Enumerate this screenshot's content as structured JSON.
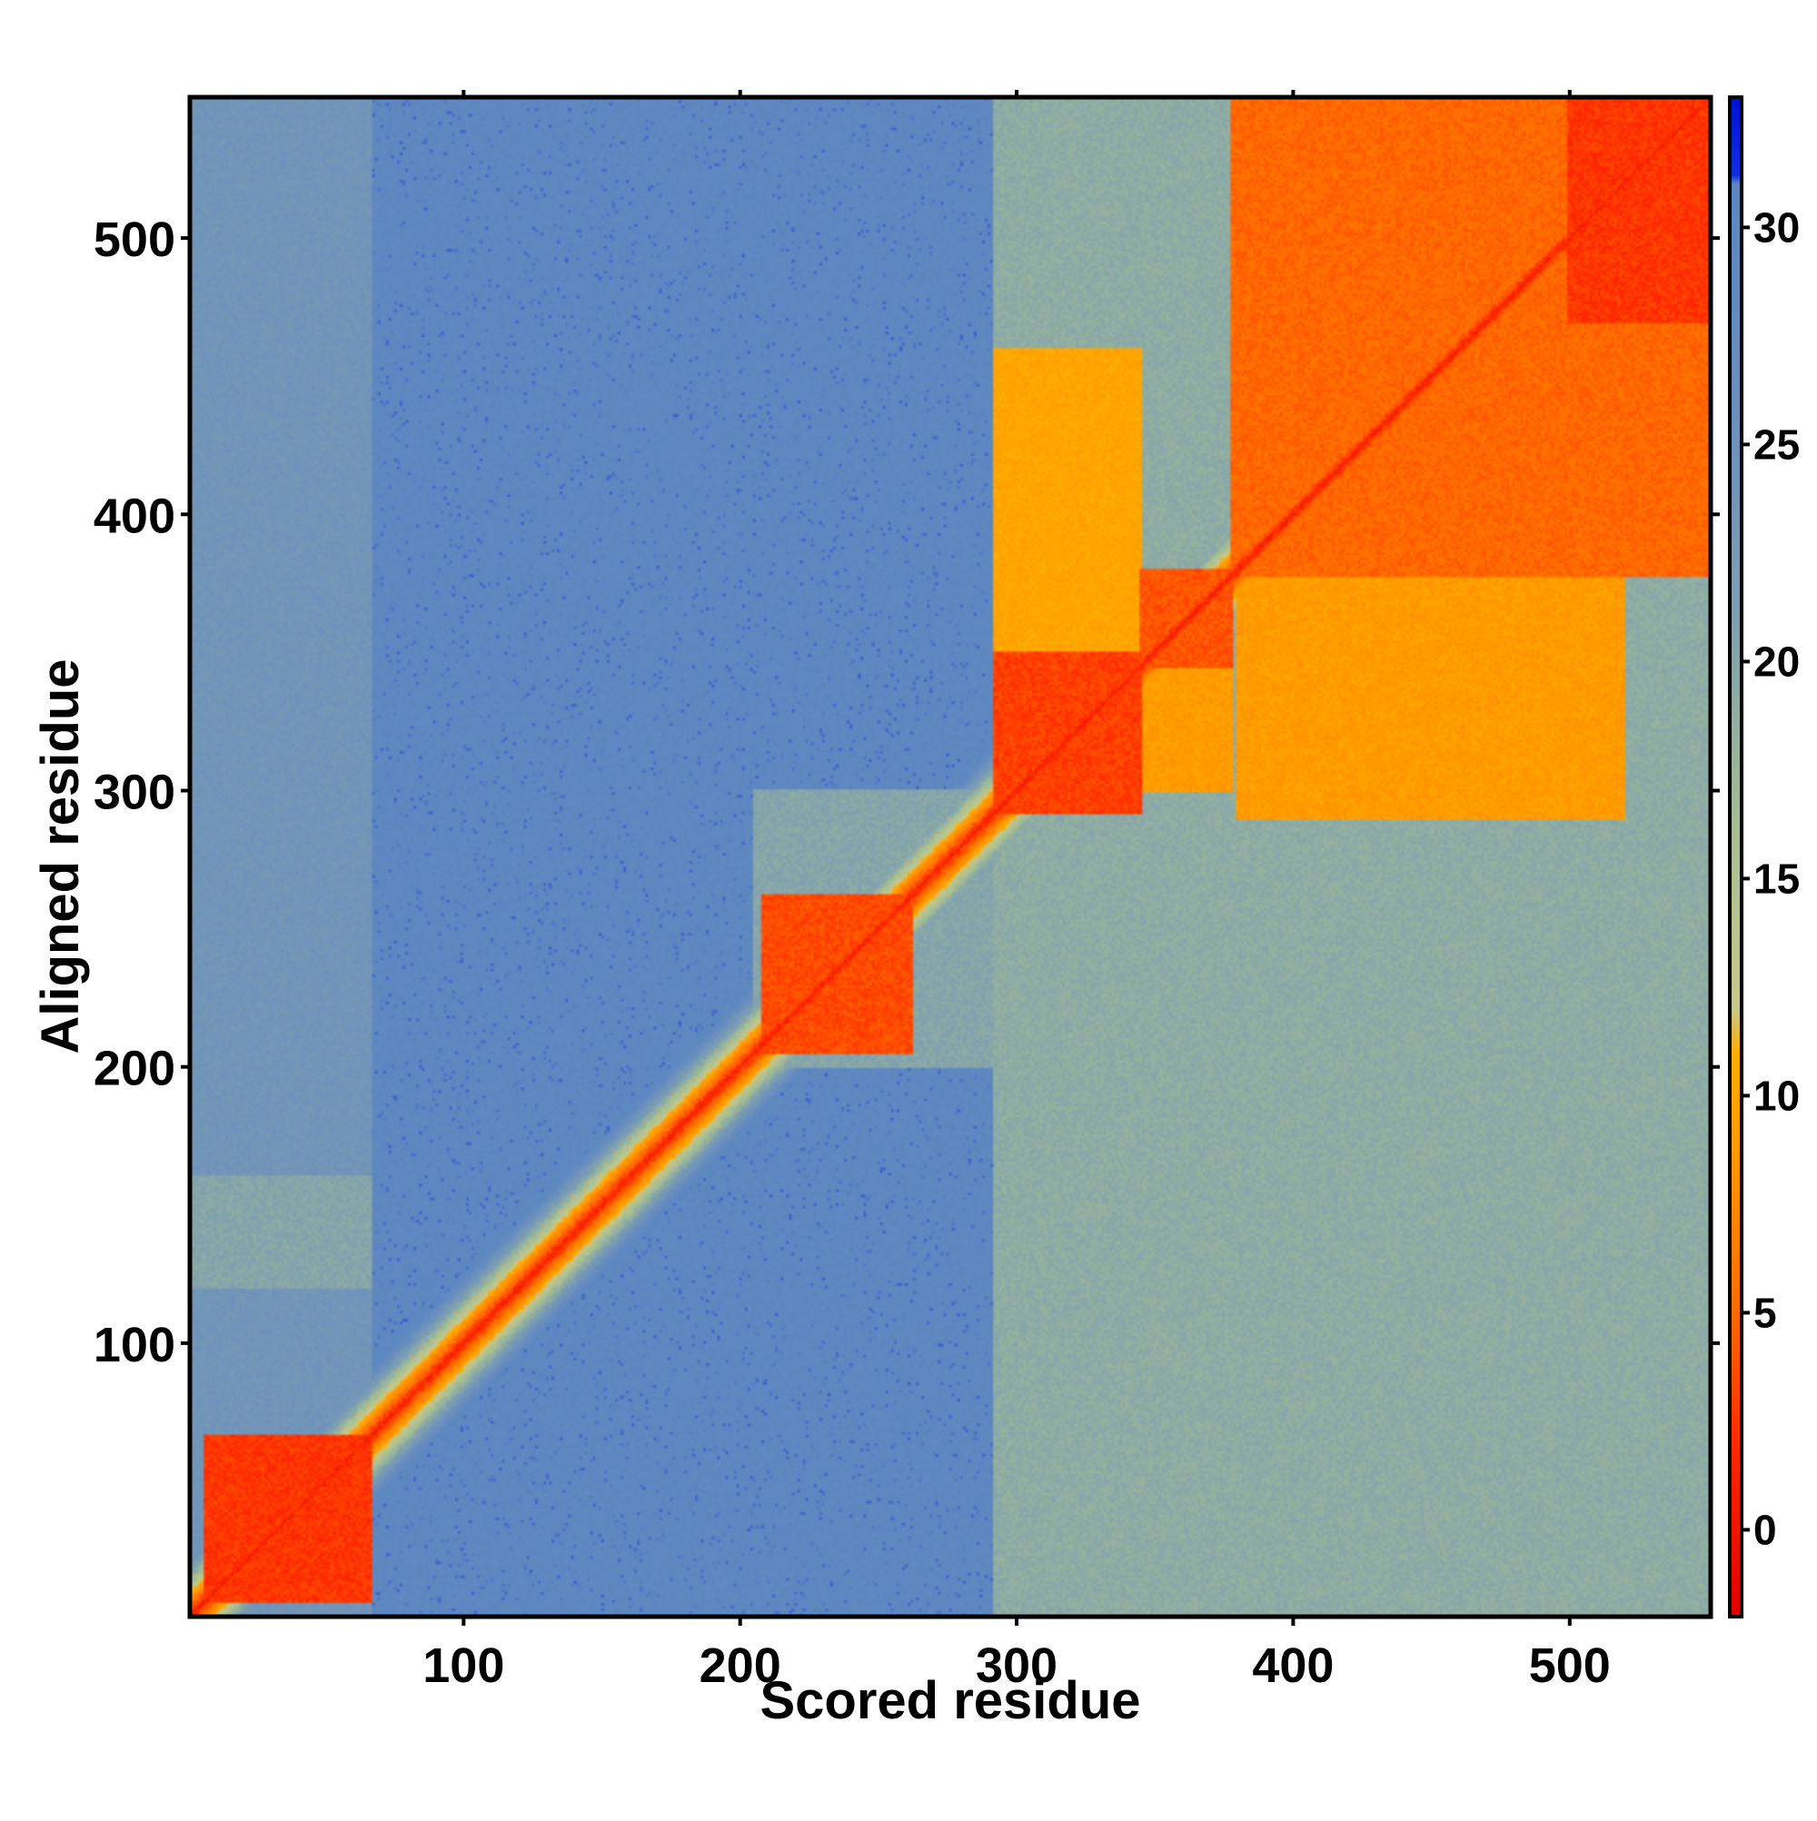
{
  "chart_data": {
    "type": "heatmap",
    "title": "",
    "xlabel": "Scored residue",
    "ylabel": "Aligned residue",
    "xlim": [
      1,
      551
    ],
    "ylim": [
      1,
      551
    ],
    "x_ticks": [
      100,
      200,
      300,
      400,
      500
    ],
    "y_ticks": [
      100,
      200,
      300,
      400,
      500
    ],
    "colorbar": {
      "range": [
        -2,
        33
      ],
      "ticks": [
        0,
        5,
        10,
        15,
        20,
        25,
        30
      ],
      "stops": [
        {
          "value": -2,
          "color": "#e00000"
        },
        {
          "value": 2,
          "color": "#ff2a00"
        },
        {
          "value": 5,
          "color": "#ff6a00"
        },
        {
          "value": 9,
          "color": "#ff9d00"
        },
        {
          "value": 11,
          "color": "#ffae00"
        },
        {
          "value": 12,
          "color": "#c8c88a"
        },
        {
          "value": 16,
          "color": "#a8bf92"
        },
        {
          "value": 21,
          "color": "#7e9fb0"
        },
        {
          "value": 26,
          "color": "#6a8fbf"
        },
        {
          "value": 31,
          "color": "#5b86c0"
        },
        {
          "value": 31.2,
          "color": "#1030e0"
        },
        {
          "value": 33,
          "color": "#0010d8"
        }
      ]
    },
    "domain_blocks": [
      {
        "x": [
          6,
          66
        ],
        "y": [
          6,
          66
        ],
        "value": 2.5
      },
      {
        "x": [
          208,
          262
        ],
        "y": [
          205,
          262
        ],
        "value": 3.5
      },
      {
        "x": [
          292,
          345
        ],
        "y": [
          292,
          350
        ],
        "value": 3
      },
      {
        "x": [
          345,
          378
        ],
        "y": [
          345,
          380
        ],
        "value": 4
      },
      {
        "x": [
          378,
          551
        ],
        "y": [
          378,
          551
        ],
        "value": 5
      },
      {
        "x": [
          380,
          520
        ],
        "y": [
          290,
          380
        ],
        "value": 9
      },
      {
        "x": [
          292,
          345
        ],
        "y": [
          350,
          460
        ],
        "value": 10
      },
      {
        "x": [
          345,
          378
        ],
        "y": [
          300,
          345
        ],
        "value": 9
      },
      {
        "x": [
          500,
          551
        ],
        "y": [
          470,
          551
        ],
        "value": 2.5
      }
    ],
    "moderate_bands": [
      {
        "x": [
          292,
          551
        ],
        "y": [
          1,
          551
        ],
        "value": 19
      },
      {
        "x": [
          205,
          292
        ],
        "y": [
          200,
          300
        ],
        "value": 20
      },
      {
        "x": [
          1,
          66
        ],
        "y": [
          120,
          160
        ],
        "value": 20
      },
      {
        "x": [
          1,
          66
        ],
        "y": [
          1,
          551
        ],
        "value": 24
      }
    ],
    "diagonal": {
      "value": 1,
      "halfwidth_residues": 8
    },
    "background_value": 30
  }
}
